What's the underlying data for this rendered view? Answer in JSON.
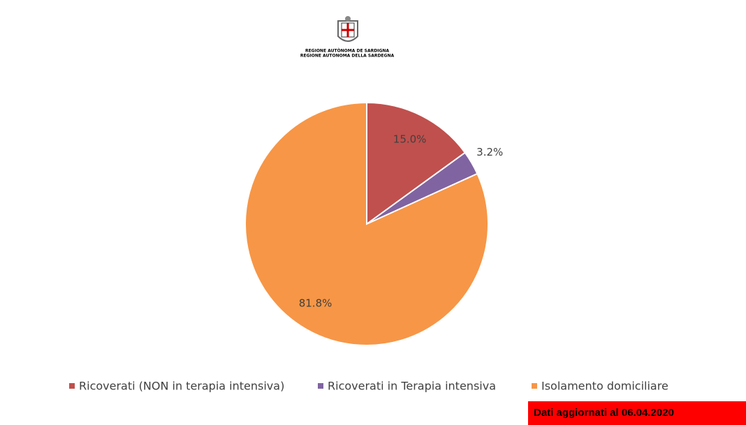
{
  "header": {
    "logo_lines": [
      "REGIONE AUTÒNOMA DE SARDIGNA",
      "REGIONE AUTONOMA DELLA SARDEGNA"
    ]
  },
  "chart_data": {
    "type": "pie",
    "categories": [
      "Ricoverati (NON in terapia intensiva)",
      "Ricoverati in Terapia intensiva",
      "Isolamento domiciliare"
    ],
    "values": [
      15.0,
      3.2,
      81.8
    ],
    "value_labels": [
      "15.0%",
      "3.2%",
      "81.8%"
    ],
    "colors": [
      "#c0504d",
      "#8064a2",
      "#f79646"
    ],
    "legend": "bottom"
  },
  "footer_note": "Dati aggiornati al 06.04.2020"
}
